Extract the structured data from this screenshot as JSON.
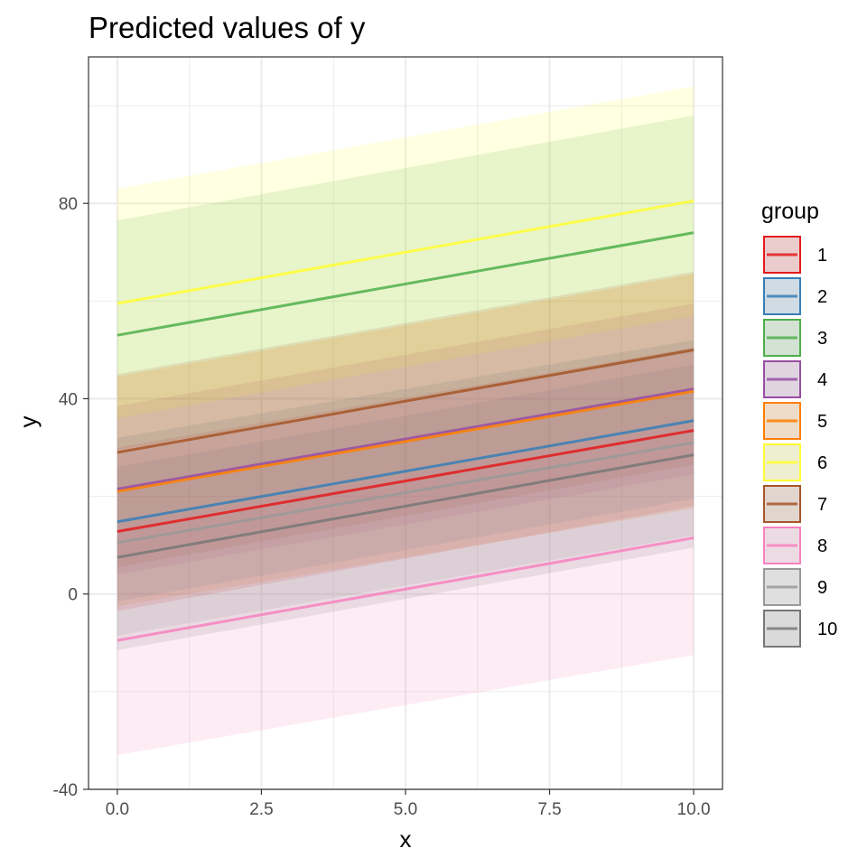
{
  "chart_data": {
    "type": "line",
    "title": "Predicted values of y",
    "xlabel": "x",
    "ylabel": "y",
    "xlim": [
      -0.5,
      10.5
    ],
    "ylim": [
      -40,
      110
    ],
    "x_ticks": [
      0,
      2.5,
      5,
      7.5,
      10
    ],
    "x_tick_labels": [
      "0.0",
      "2.5",
      "5.0",
      "7.5",
      "10.0"
    ],
    "y_ticks": [
      -40,
      0,
      40,
      80
    ],
    "y_tick_labels": [
      "-40",
      "0",
      "40",
      "80"
    ],
    "grid": true,
    "legend_title": "group",
    "legend_position": "right",
    "series": [
      {
        "name": "1",
        "color": "#E41A1C",
        "x": [
          0,
          10
        ],
        "y": [
          12.8,
          33.5
        ],
        "lower": [
          -3.5,
          18.0
        ],
        "upper": [
          30.0,
          50.5
        ]
      },
      {
        "name": "2",
        "color": "#377EB8",
        "x": [
          0,
          10
        ],
        "y": [
          14.8,
          35.5
        ],
        "lower": [
          -1.5,
          19.5
        ],
        "upper": [
          32.0,
          52.0
        ]
      },
      {
        "name": "3",
        "color": "#4DAF4A",
        "x": [
          0,
          10
        ],
        "y": [
          53.0,
          74.0
        ],
        "lower": [
          29.5,
          49.5
        ],
        "upper": [
          76.5,
          98.0
        ]
      },
      {
        "name": "4",
        "color": "#984EA3",
        "x": [
          0,
          10
        ],
        "y": [
          21.5,
          42.0
        ],
        "lower": [
          4.0,
          24.5
        ],
        "upper": [
          38.5,
          59.5
        ]
      },
      {
        "name": "5",
        "color": "#FF7F00",
        "x": [
          0,
          10
        ],
        "y": [
          21.0,
          41.5
        ],
        "lower": [
          -2.5,
          17.5
        ],
        "upper": [
          44.5,
          65.5
        ]
      },
      {
        "name": "6",
        "color": "#FFFF33",
        "x": [
          0,
          10
        ],
        "y": [
          59.5,
          80.5
        ],
        "lower": [
          36.0,
          57.0
        ],
        "upper": [
          83.0,
          104.0
        ]
      },
      {
        "name": "7",
        "color": "#A65628",
        "x": [
          0,
          10
        ],
        "y": [
          29.0,
          50.0
        ],
        "lower": [
          5.5,
          26.5
        ],
        "upper": [
          45.0,
          66.0
        ]
      },
      {
        "name": "8",
        "color": "#F781BF",
        "x": [
          0,
          10
        ],
        "y": [
          -9.5,
          11.5
        ],
        "lower": [
          -33.0,
          -12.5
        ],
        "upper": [
          14.0,
          35.0
        ]
      },
      {
        "name": "9",
        "color": "#999999",
        "x": [
          0,
          10
        ],
        "y": [
          10.5,
          31.0
        ],
        "lower": [
          -8.5,
          12.0
        ],
        "upper": [
          29.0,
          50.0
        ]
      },
      {
        "name": "10",
        "color": "#777777",
        "x": [
          0,
          10
        ],
        "y": [
          7.5,
          28.5
        ],
        "lower": [
          -11.5,
          9.5
        ],
        "upper": [
          26.0,
          47.0
        ]
      }
    ]
  }
}
